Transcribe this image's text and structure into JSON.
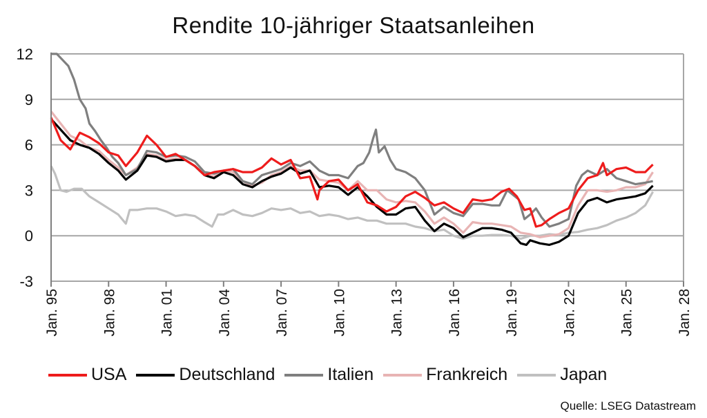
{
  "chart_data": {
    "type": "line",
    "title": "Rendite 10-jähriger Staatsanleihen",
    "xlabel": "",
    "ylabel": "",
    "ylim": [
      -3,
      12
    ],
    "yticks": [
      -3,
      0,
      3,
      6,
      9,
      12
    ],
    "xlim": [
      1995,
      2028
    ],
    "xticks": [
      {
        "v": 1995,
        "label": "Jan. 95"
      },
      {
        "v": 1998,
        "label": "Jan. 98"
      },
      {
        "v": 2001,
        "label": "Jan. 01"
      },
      {
        "v": 2004,
        "label": "Jan. 04"
      },
      {
        "v": 2007,
        "label": "Jan. 07"
      },
      {
        "v": 2010,
        "label": "Jan. 10"
      },
      {
        "v": 2013,
        "label": "Jan. 13"
      },
      {
        "v": 2016,
        "label": "Jan. 16"
      },
      {
        "v": 2019,
        "label": "Jan. 19"
      },
      {
        "v": 2022,
        "label": "Jan. 22"
      },
      {
        "v": 2025,
        "label": "Jan. 25"
      },
      {
        "v": 2028,
        "label": "Jan. 28"
      }
    ],
    "grid": "horizontal",
    "legend_position": "bottom",
    "series": [
      {
        "name": "Japan",
        "color": "#c0c0c0",
        "x": [
          1995.0,
          1995.2,
          1995.5,
          1995.8,
          1996.2,
          1996.6,
          1997.0,
          1997.5,
          1998.0,
          1998.5,
          1998.9,
          1999.1,
          1999.5,
          2000.0,
          2000.5,
          2001.0,
          2001.5,
          2002.0,
          2002.5,
          2003.0,
          2003.4,
          2003.7,
          2004.0,
          2004.5,
          2005.0,
          2005.5,
          2006.0,
          2006.5,
          2007.0,
          2007.5,
          2008.0,
          2008.5,
          2009.0,
          2009.5,
          2010.0,
          2010.5,
          2011.0,
          2011.5,
          2012.0,
          2012.5,
          2013.0,
          2013.5,
          2014.0,
          2014.5,
          2015.0,
          2015.5,
          2016.0,
          2016.5,
          2017.0,
          2017.5,
          2018.0,
          2018.5,
          2019.0,
          2019.5,
          2020.0,
          2020.5,
          2021.0,
          2021.5,
          2022.0,
          2022.5,
          2023.0,
          2023.5,
          2024.0,
          2024.5,
          2025.0,
          2025.5,
          2026.0,
          2026.4
        ],
        "y": [
          4.6,
          4.1,
          3.0,
          2.9,
          3.1,
          3.1,
          2.6,
          2.2,
          1.8,
          1.4,
          0.8,
          1.7,
          1.7,
          1.8,
          1.8,
          1.6,
          1.3,
          1.4,
          1.3,
          0.9,
          0.6,
          1.4,
          1.4,
          1.7,
          1.4,
          1.3,
          1.5,
          1.8,
          1.7,
          1.8,
          1.5,
          1.6,
          1.3,
          1.4,
          1.3,
          1.1,
          1.2,
          1.0,
          1.0,
          0.8,
          0.8,
          0.8,
          0.6,
          0.5,
          0.3,
          0.4,
          0.0,
          -0.2,
          0.0,
          0.0,
          0.05,
          0.05,
          0.0,
          -0.2,
          0.0,
          0.0,
          0.1,
          0.05,
          0.2,
          0.25,
          0.4,
          0.5,
          0.7,
          1.0,
          1.2,
          1.5,
          2.0,
          2.9
        ]
      },
      {
        "name": "Frankreich",
        "color": "#e8b4b4",
        "x": [
          1995.0,
          1995.5,
          1996.0,
          1996.5,
          1997.0,
          1997.5,
          1998.0,
          1998.5,
          1998.9,
          1999.5,
          2000.0,
          2000.5,
          2001.0,
          2001.5,
          2002.0,
          2002.5,
          2003.0,
          2003.5,
          2004.0,
          2004.5,
          2005.0,
          2005.5,
          2006.0,
          2006.5,
          2007.0,
          2007.5,
          2008.0,
          2008.5,
          2009.0,
          2009.5,
          2010.0,
          2010.5,
          2011.0,
          2011.5,
          2012.0,
          2012.5,
          2013.0,
          2013.5,
          2014.0,
          2014.5,
          2015.0,
          2015.5,
          2016.0,
          2016.5,
          2017.0,
          2017.5,
          2018.0,
          2018.5,
          2019.0,
          2019.5,
          2020.0,
          2020.5,
          2021.0,
          2021.5,
          2022.0,
          2022.5,
          2023.0,
          2023.5,
          2024.0,
          2024.5,
          2025.0,
          2025.5,
          2026.0,
          2026.4
        ],
        "y": [
          8.2,
          7.4,
          6.6,
          6.3,
          5.8,
          5.6,
          5.0,
          4.5,
          4.0,
          4.5,
          5.4,
          5.3,
          5.0,
          5.1,
          5.0,
          4.6,
          4.1,
          3.9,
          4.3,
          4.2,
          3.6,
          3.3,
          3.5,
          4.0,
          4.2,
          4.6,
          4.3,
          4.3,
          3.7,
          3.6,
          3.5,
          3.0,
          3.6,
          3.0,
          3.0,
          2.4,
          2.2,
          2.3,
          2.2,
          1.6,
          0.8,
          1.2,
          0.8,
          0.2,
          0.9,
          0.8,
          0.8,
          0.7,
          0.6,
          0.2,
          0.1,
          -0.1,
          0.0,
          0.1,
          0.5,
          2.0,
          3.0,
          3.0,
          2.9,
          3.0,
          3.2,
          3.2,
          3.4,
          4.2
        ]
      },
      {
        "name": "Italien",
        "color": "#7f7f7f",
        "x": [
          1995.0,
          1995.3,
          1995.6,
          1995.9,
          1996.2,
          1996.5,
          1996.8,
          1997.0,
          1997.3,
          1997.6,
          1997.9,
          1998.2,
          1998.5,
          1998.9,
          1999.5,
          2000.0,
          2000.5,
          2001.0,
          2001.5,
          2002.0,
          2002.5,
          2003.0,
          2003.5,
          2004.0,
          2004.5,
          2005.0,
          2005.5,
          2006.0,
          2006.5,
          2007.0,
          2007.5,
          2008.0,
          2008.5,
          2009.0,
          2009.5,
          2010.0,
          2010.5,
          2011.0,
          2011.3,
          2011.6,
          2011.8,
          2011.95,
          2012.1,
          2012.4,
          2012.7,
          2013.0,
          2013.5,
          2014.0,
          2014.5,
          2015.0,
          2015.5,
          2016.0,
          2016.5,
          2017.0,
          2017.5,
          2018.0,
          2018.4,
          2018.8,
          2019.0,
          2019.4,
          2019.7,
          2020.0,
          2020.3,
          2020.6,
          2021.0,
          2021.5,
          2022.0,
          2022.4,
          2022.7,
          2023.0,
          2023.5,
          2024.0,
          2024.5,
          2025.0,
          2025.5,
          2026.0,
          2026.4
        ],
        "y": [
          12.0,
          12.0,
          11.6,
          11.2,
          10.3,
          9.0,
          8.4,
          7.4,
          6.9,
          6.3,
          5.8,
          5.2,
          4.8,
          4.0,
          4.4,
          5.6,
          5.5,
          5.2,
          5.3,
          5.2,
          4.9,
          4.2,
          4.1,
          4.3,
          4.4,
          3.6,
          3.4,
          4.0,
          4.2,
          4.4,
          4.8,
          4.6,
          4.9,
          4.3,
          4.0,
          4.0,
          3.8,
          4.6,
          4.8,
          5.5,
          6.4,
          7.0,
          5.5,
          5.9,
          5.0,
          4.4,
          4.2,
          3.8,
          3.0,
          1.4,
          1.9,
          1.5,
          1.3,
          2.1,
          2.1,
          2.0,
          2.0,
          3.0,
          2.8,
          2.4,
          1.1,
          1.4,
          1.8,
          1.2,
          0.6,
          0.8,
          1.1,
          3.3,
          4.0,
          4.3,
          4.0,
          4.4,
          3.8,
          3.6,
          3.4,
          3.5,
          3.6
        ]
      },
      {
        "name": "Deutschland",
        "color": "#000000",
        "x": [
          1995.0,
          1995.5,
          1996.0,
          1996.5,
          1997.0,
          1997.5,
          1998.0,
          1998.5,
          1998.9,
          1999.5,
          2000.0,
          2000.5,
          2001.0,
          2001.5,
          2002.0,
          2002.5,
          2003.0,
          2003.5,
          2004.0,
          2004.5,
          2005.0,
          2005.5,
          2006.0,
          2006.5,
          2007.0,
          2007.5,
          2008.0,
          2008.5,
          2009.0,
          2009.5,
          2010.0,
          2010.5,
          2011.0,
          2011.5,
          2012.0,
          2012.5,
          2013.0,
          2013.5,
          2014.0,
          2014.5,
          2015.0,
          2015.5,
          2016.0,
          2016.5,
          2017.0,
          2017.5,
          2018.0,
          2018.5,
          2019.0,
          2019.5,
          2019.8,
          2020.0,
          2020.5,
          2021.0,
          2021.5,
          2022.0,
          2022.5,
          2023.0,
          2023.5,
          2024.0,
          2024.5,
          2025.0,
          2025.5,
          2026.0,
          2026.4
        ],
        "y": [
          7.7,
          7.0,
          6.3,
          6.0,
          5.8,
          5.4,
          4.8,
          4.3,
          3.7,
          4.3,
          5.3,
          5.2,
          4.9,
          5.0,
          5.0,
          4.6,
          4.0,
          3.8,
          4.2,
          4.0,
          3.4,
          3.2,
          3.6,
          3.9,
          4.1,
          4.5,
          4.1,
          4.3,
          3.2,
          3.3,
          3.2,
          2.7,
          3.2,
          2.6,
          1.9,
          1.4,
          1.4,
          1.8,
          1.9,
          1.0,
          0.3,
          0.8,
          0.5,
          -0.1,
          0.2,
          0.5,
          0.5,
          0.4,
          0.2,
          -0.5,
          -0.6,
          -0.3,
          -0.5,
          -0.6,
          -0.4,
          0.0,
          1.5,
          2.3,
          2.5,
          2.2,
          2.4,
          2.5,
          2.6,
          2.8,
          3.3
        ]
      },
      {
        "name": "USA",
        "color": "#ee1c1c",
        "x": [
          1995.0,
          1995.5,
          1996.0,
          1996.5,
          1997.0,
          1997.5,
          1998.0,
          1998.5,
          1998.9,
          1999.5,
          2000.0,
          2000.5,
          2001.0,
          2001.5,
          2002.0,
          2002.5,
          2003.0,
          2003.5,
          2004.0,
          2004.5,
          2005.0,
          2005.5,
          2006.0,
          2006.5,
          2007.0,
          2007.5,
          2008.0,
          2008.5,
          2008.9,
          2009.0,
          2009.5,
          2010.0,
          2010.5,
          2011.0,
          2011.5,
          2012.0,
          2012.5,
          2013.0,
          2013.5,
          2014.0,
          2014.5,
          2015.0,
          2015.5,
          2016.0,
          2016.5,
          2017.0,
          2017.5,
          2018.0,
          2018.5,
          2018.9,
          2019.3,
          2019.7,
          2020.0,
          2020.3,
          2020.6,
          2021.0,
          2021.5,
          2022.0,
          2022.5,
          2023.0,
          2023.5,
          2023.8,
          2024.0,
          2024.5,
          2025.0,
          2025.5,
          2026.0,
          2026.4
        ],
        "y": [
          7.8,
          6.3,
          5.7,
          6.8,
          6.5,
          6.1,
          5.5,
          5.3,
          4.6,
          5.5,
          6.6,
          6.0,
          5.2,
          5.4,
          5.0,
          4.6,
          4.0,
          4.2,
          4.3,
          4.4,
          4.2,
          4.2,
          4.5,
          5.1,
          4.7,
          5.0,
          3.8,
          3.9,
          2.4,
          3.0,
          3.6,
          3.7,
          3.0,
          3.4,
          2.2,
          2.0,
          1.6,
          1.9,
          2.6,
          2.9,
          2.5,
          2.0,
          2.2,
          1.8,
          1.5,
          2.4,
          2.3,
          2.4,
          2.9,
          3.1,
          2.6,
          1.7,
          1.8,
          0.6,
          0.7,
          1.1,
          1.5,
          1.8,
          3.0,
          3.8,
          4.0,
          4.8,
          4.0,
          4.4,
          4.5,
          4.2,
          4.2,
          4.7
        ]
      }
    ],
    "legend": [
      "USA",
      "Deutschland",
      "Italien",
      "Frankreich",
      "Japan"
    ],
    "source": "Quelle: LSEG Datastream"
  }
}
